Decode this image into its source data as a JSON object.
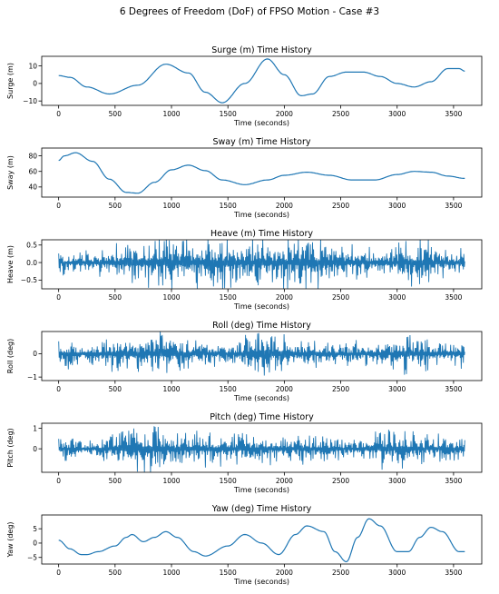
{
  "suptitle": "6 Degrees of Freedom (DoF) of FPSO Motion - Case #3",
  "chart_data": [
    {
      "type": "line",
      "title": "Surge (m) Time History",
      "xlabel": "Time (seconds)",
      "ylabel": "Surge (m)",
      "xlim": [
        -150,
        3750
      ],
      "ylim": [
        -12.5,
        15.5
      ],
      "xticks": [
        0,
        500,
        1000,
        1500,
        2000,
        2500,
        3000,
        3500
      ],
      "yticks": [
        -10,
        0,
        10
      ],
      "color": "#1f77b4",
      "x": [
        0,
        100,
        250,
        450,
        700,
        950,
        1150,
        1300,
        1450,
        1650,
        1850,
        2000,
        2150,
        2250,
        2400,
        2550,
        2700,
        2850,
        3000,
        3150,
        3300,
        3450,
        3550,
        3600
      ],
      "y": [
        4.5,
        3.5,
        -2,
        -6,
        -1,
        11,
        6,
        -5,
        -11,
        0,
        14,
        5,
        -7,
        -6,
        4,
        6.5,
        6.5,
        4,
        0,
        -2,
        1,
        8.5,
        8.5,
        7
      ]
    },
    {
      "type": "line",
      "title": "Sway (m) Time History",
      "xlabel": "Time (seconds)",
      "ylabel": "Sway (m)",
      "xlim": [
        -150,
        3750
      ],
      "ylim": [
        27,
        90
      ],
      "xticks": [
        0,
        500,
        1000,
        1500,
        2000,
        2500,
        3000,
        3500
      ],
      "yticks": [
        40,
        60,
        80
      ],
      "color": "#1f77b4",
      "x": [
        0,
        50,
        150,
        300,
        450,
        600,
        700,
        850,
        1000,
        1150,
        1300,
        1450,
        1650,
        1850,
        2000,
        2200,
        2400,
        2600,
        2800,
        3000,
        3150,
        3300,
        3450,
        3600
      ],
      "y": [
        74,
        80,
        84,
        73,
        50,
        33,
        32,
        46,
        62,
        68,
        61,
        49,
        43,
        49,
        55,
        59,
        55,
        49,
        49,
        56,
        60,
        59,
        54,
        51
      ]
    },
    {
      "type": "line",
      "title": "Heave (m) Time History",
      "xlabel": "Time (seconds)",
      "ylabel": "Heave (m)",
      "xlim": [
        -150,
        3750
      ],
      "ylim": [
        -0.75,
        0.65
      ],
      "xticks": [
        0,
        500,
        1000,
        1500,
        2000,
        2500,
        3000,
        3500
      ],
      "yticks": [
        -0.5,
        0.0,
        0.5
      ],
      "color": "#1f77b4",
      "envelope": [
        {
          "x": [
            0,
            400,
            650,
            1200,
            1750,
            2250,
            2500,
            2900,
            3150,
            3600
          ],
          "amp": [
            0.25,
            0.32,
            0.55,
            0.55,
            0.5,
            0.6,
            0.42,
            0.32,
            0.52,
            0.3
          ]
        }
      ]
    },
    {
      "type": "line",
      "title": "Roll (deg) Time History",
      "xlabel": "Time (seconds)",
      "ylabel": "Roll (deg)",
      "xlim": [
        -150,
        3750
      ],
      "ylim": [
        -1.15,
        0.95
      ],
      "xticks": [
        0,
        500,
        1000,
        1500,
        2000,
        2500,
        3000,
        3500
      ],
      "yticks": [
        -1,
        0
      ],
      "color": "#1f77b4",
      "envelope": [
        {
          "x": [
            0,
            300,
            500,
            900,
            1300,
            1500,
            1800,
            2100,
            2500,
            2900,
            3100,
            3500,
            3600
          ],
          "amp": [
            0.5,
            0.4,
            0.55,
            0.7,
            0.45,
            0.4,
            0.95,
            0.55,
            0.4,
            0.45,
            0.7,
            0.45,
            0.55
          ]
        }
      ]
    },
    {
      "type": "line",
      "title": "Pitch (deg) Time History",
      "xlabel": "Time (seconds)",
      "ylabel": "Pitch (deg)",
      "xlim": [
        -150,
        3750
      ],
      "ylim": [
        -1.15,
        1.25
      ],
      "xticks": [
        0,
        500,
        1000,
        1500,
        2000,
        2500,
        3000,
        3500
      ],
      "yticks": [
        0,
        1
      ],
      "color": "#1f77b4",
      "envelope": [
        {
          "x": [
            0,
            300,
            600,
            750,
            1000,
            1300,
            1650,
            2000,
            2300,
            2600,
            3000,
            3300,
            3600
          ],
          "amp": [
            0.45,
            0.35,
            0.8,
            1.05,
            0.7,
            0.65,
            0.65,
            0.55,
            0.55,
            0.4,
            0.85,
            0.5,
            0.6
          ]
        }
      ]
    },
    {
      "type": "line",
      "title": "Yaw (deg) Time History",
      "xlabel": "Time (seconds)",
      "ylabel": "Yaw (deg)",
      "xlim": [
        -150,
        3750
      ],
      "ylim": [
        -7.3,
        9.8
      ],
      "xticks": [
        0,
        500,
        1000,
        1500,
        2000,
        2500,
        3000,
        3500
      ],
      "yticks": [
        -5,
        0,
        5
      ],
      "color": "#1f77b4",
      "x": [
        0,
        100,
        200,
        250,
        350,
        500,
        600,
        650,
        750,
        850,
        950,
        1050,
        1200,
        1300,
        1500,
        1650,
        1800,
        1950,
        2100,
        2200,
        2350,
        2450,
        2550,
        2650,
        2750,
        2850,
        3000,
        3100,
        3200,
        3300,
        3400,
        3550,
        3600
      ],
      "y": [
        1,
        -2,
        -4,
        -4,
        -3,
        -1,
        2,
        3,
        0.5,
        2,
        4,
        2,
        -3,
        -4.5,
        -1,
        3,
        0,
        -4,
        3,
        6,
        4,
        -3,
        -6.5,
        2,
        8.5,
        6,
        -3,
        -3,
        2,
        5.5,
        4,
        -3,
        -3
      ]
    }
  ]
}
